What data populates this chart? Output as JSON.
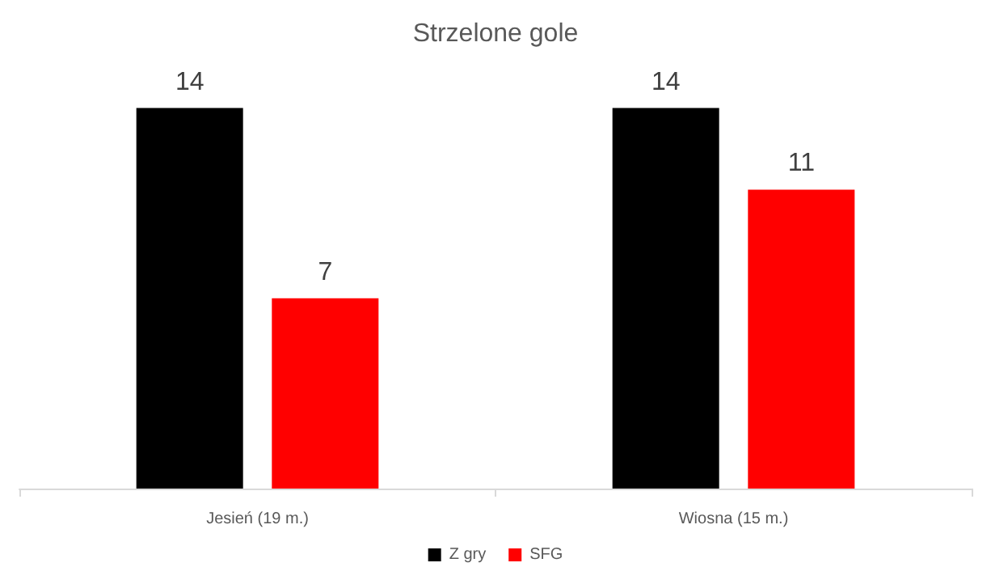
{
  "chart_data": {
    "type": "bar",
    "title": "Strzelone gole",
    "categories": [
      "Jesień (19 m.)",
      "Wiosna (15 m.)"
    ],
    "series": [
      {
        "name": "Z gry",
        "color": "#000000",
        "values": [
          14,
          14
        ]
      },
      {
        "name": "SFG",
        "color": "#ff0000",
        "values": [
          7,
          11
        ]
      }
    ],
    "data_labels": true,
    "grid": false,
    "legend": "bottom"
  }
}
